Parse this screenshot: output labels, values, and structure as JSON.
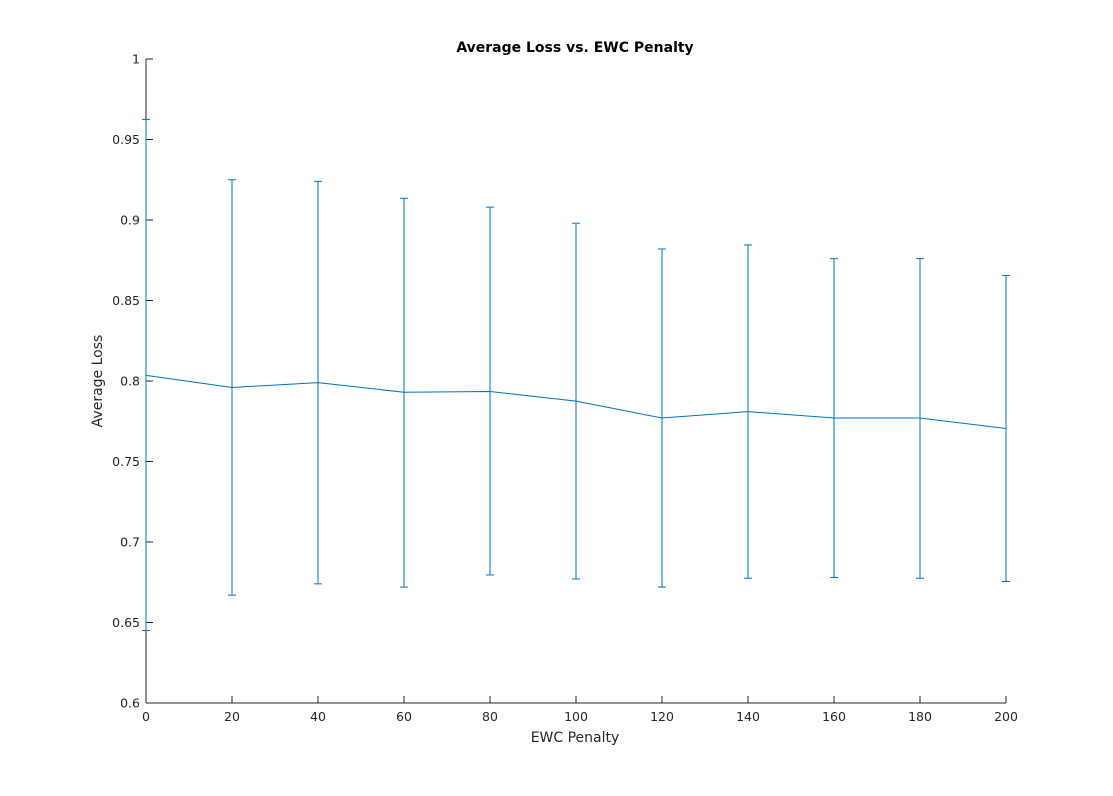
{
  "chart_data": {
    "type": "line",
    "title": "Average Loss vs. EWC Penalty",
    "xlabel": "EWC Penalty",
    "ylabel": "Average Loss",
    "xlim": [
      0,
      200
    ],
    "ylim": [
      0.6,
      1
    ],
    "xticks": [
      "0",
      "20",
      "40",
      "60",
      "80",
      "100",
      "120",
      "140",
      "160",
      "180",
      "200"
    ],
    "yticks": [
      "0.6",
      "0.65",
      "0.7",
      "0.75",
      "0.8",
      "0.85",
      "0.9",
      "0.95",
      "1"
    ],
    "grid": false,
    "legend": "none",
    "series": [
      {
        "color": "#0072BD",
        "error_bars": true,
        "points": [
          {
            "x": 0,
            "y": 0.8035,
            "low": 0.645,
            "high": 0.9625
          },
          {
            "x": 20,
            "y": 0.796,
            "low": 0.667,
            "high": 0.925
          },
          {
            "x": 40,
            "y": 0.799,
            "low": 0.674,
            "high": 0.924
          },
          {
            "x": 60,
            "y": 0.793,
            "low": 0.672,
            "high": 0.9135
          },
          {
            "x": 80,
            "y": 0.7935,
            "low": 0.6795,
            "high": 0.908
          },
          {
            "x": 100,
            "y": 0.7875,
            "low": 0.677,
            "high": 0.898
          },
          {
            "x": 120,
            "y": 0.777,
            "low": 0.672,
            "high": 0.882
          },
          {
            "x": 140,
            "y": 0.781,
            "low": 0.6775,
            "high": 0.8845
          },
          {
            "x": 160,
            "y": 0.777,
            "low": 0.678,
            "high": 0.876
          },
          {
            "x": 180,
            "y": 0.777,
            "low": 0.6775,
            "high": 0.876
          },
          {
            "x": 200,
            "y": 0.7705,
            "low": 0.6755,
            "high": 0.8655
          }
        ]
      }
    ]
  }
}
